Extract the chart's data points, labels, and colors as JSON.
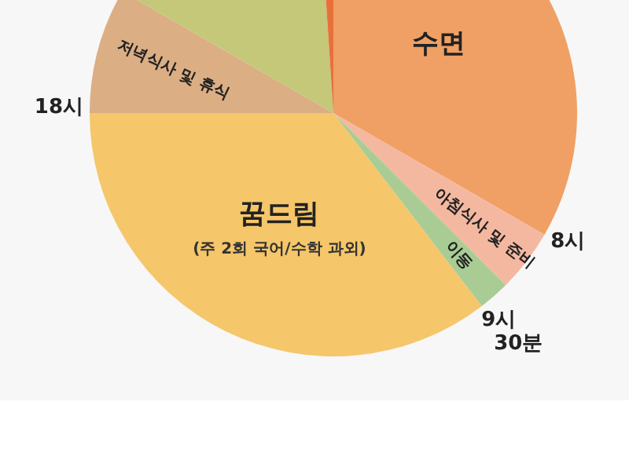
{
  "chart_data": {
    "type": "pie",
    "categories": [
      "수면",
      "아침식사 및 준비",
      "이동",
      "꿈드림",
      "저녁식사 및 휴식",
      null,
      null
    ],
    "values": [
      33.33,
      4.17,
      2.08,
      35.42,
      8.33,
      15.63,
      1.04
    ],
    "colors": [
      "#f0a064",
      "#f4b8a0",
      "#a8cc94",
      "#f5c66a",
      "#dcae84",
      "#c4c878",
      "#e8703a"
    ],
    "annotations": [
      {
        "text": "8시",
        "x": "아침식사 및 준비"
      },
      {
        "text": "9시 30분",
        "x": "꿈드림"
      },
      {
        "text": "18시",
        "x": "저녁식사 및 휴식"
      },
      "(주 2회 국어/수학 과외)"
    ]
  }
}
